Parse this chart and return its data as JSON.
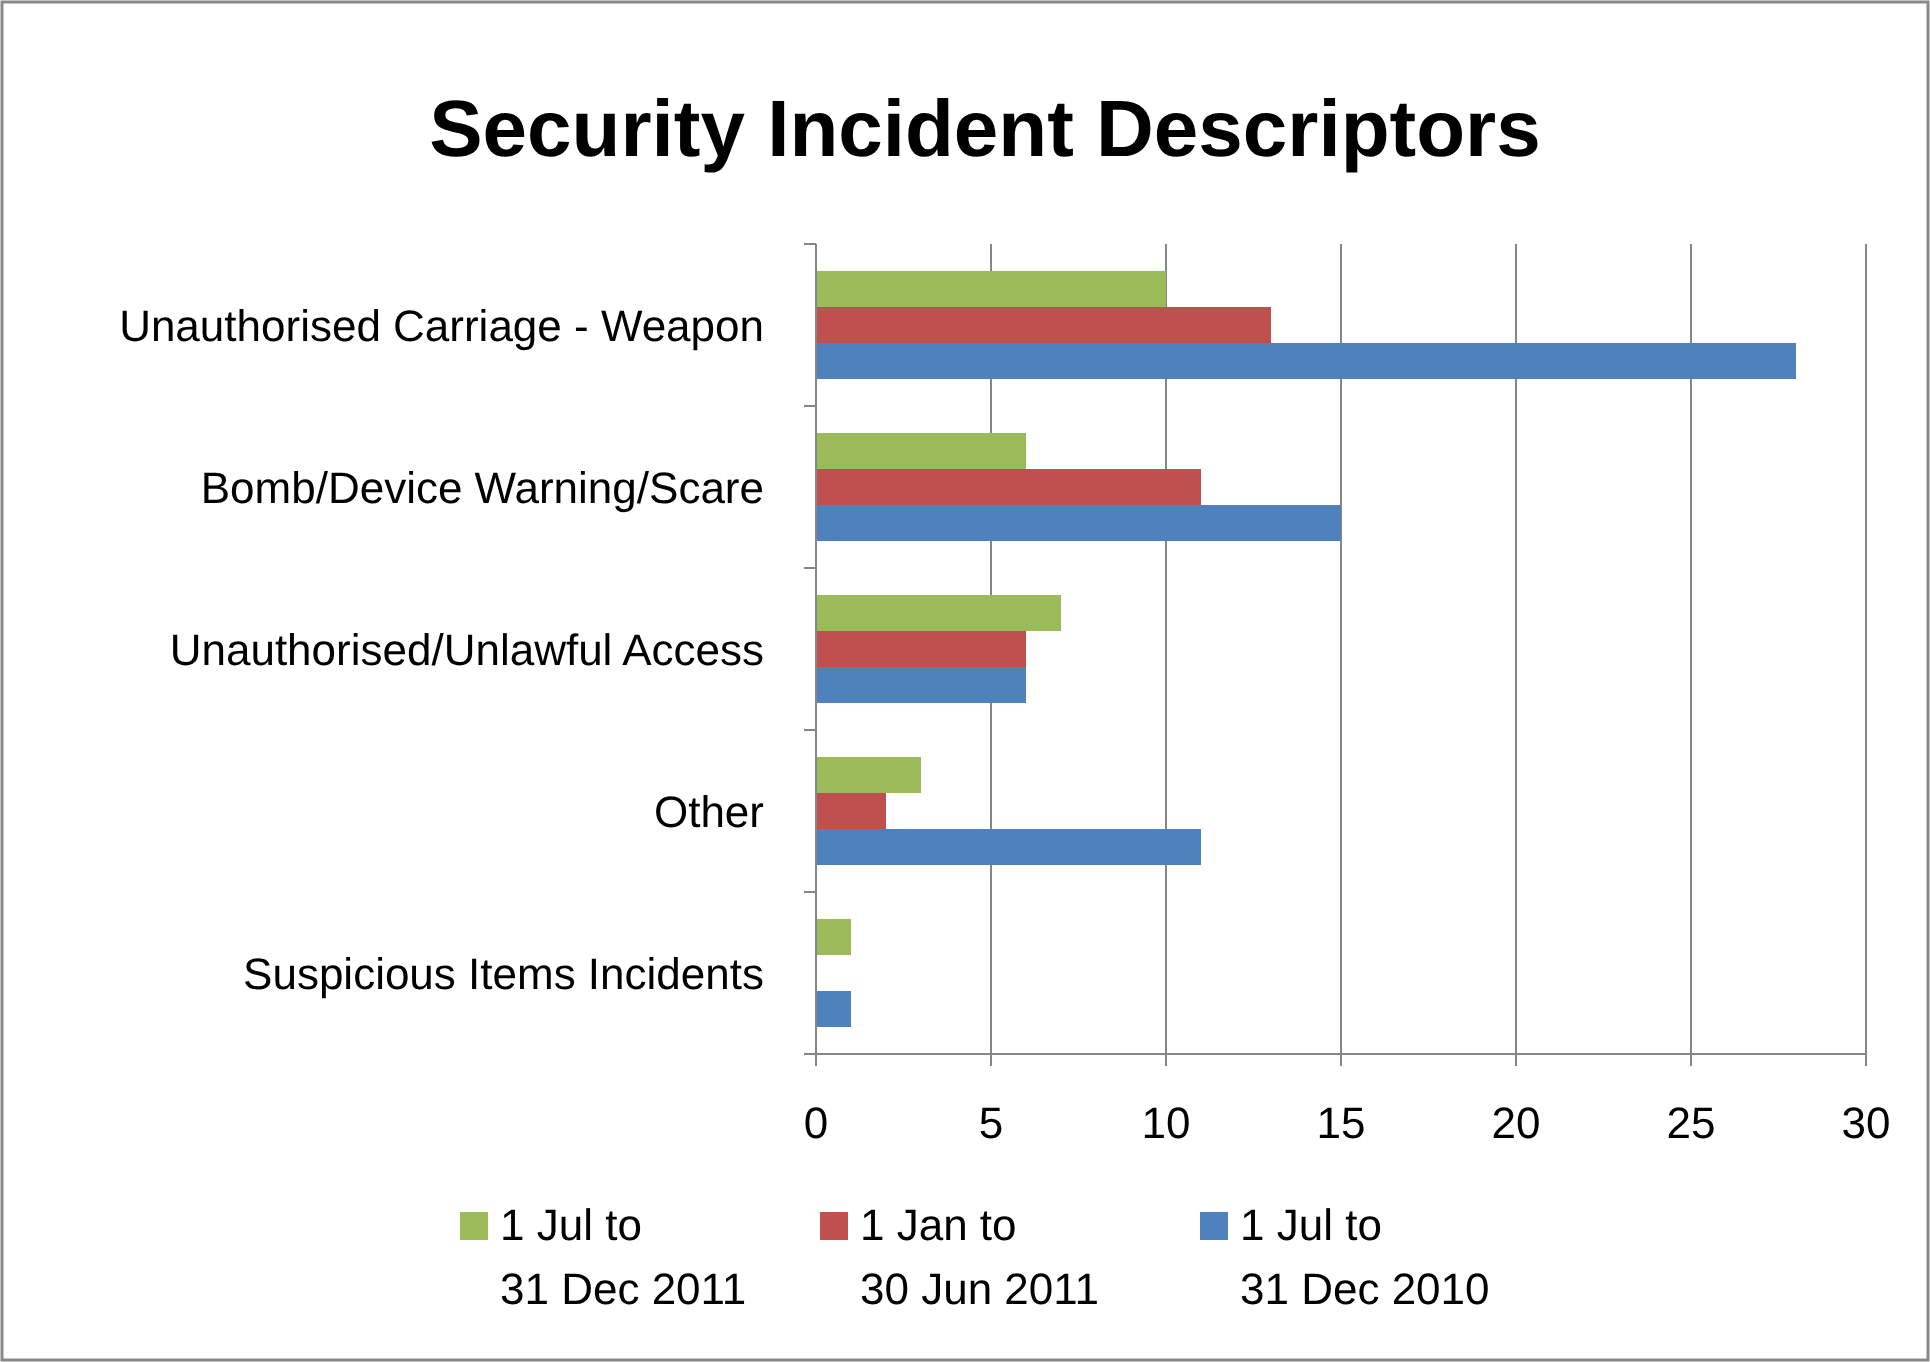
{
  "chart_data": {
    "type": "bar",
    "orientation": "horizontal",
    "title": "Security Incident Descriptors",
    "categories": [
      "Unauthorised Carriage - Weapon",
      "Bomb/Device Warning/Scare",
      "Unauthorised/Unlawful Access",
      "Other",
      "Suspicious Items Incidents"
    ],
    "series": [
      {
        "name": "1 Jul to\n31 Dec 2011",
        "color": "#9bbb59",
        "values": [
          10,
          6,
          7,
          3,
          1
        ]
      },
      {
        "name": "1 Jan to\n30 Jun 2011",
        "color": "#c0504d",
        "values": [
          13,
          11,
          6,
          2,
          0
        ]
      },
      {
        "name": "1 Jul to\n31 Dec 2010",
        "color": "#4f81bd",
        "values": [
          28,
          15,
          6,
          11,
          1
        ]
      }
    ],
    "xlim": [
      0,
      30
    ],
    "xticks": [
      0,
      5,
      10,
      15,
      20,
      25,
      30
    ],
    "grid": "x",
    "legend": "bottom"
  }
}
